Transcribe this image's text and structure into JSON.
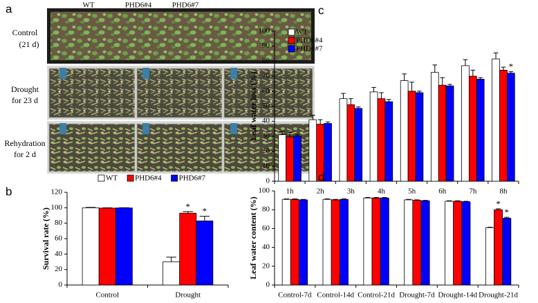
{
  "photo_panel": {
    "panel": "a",
    "columns": [
      "WT",
      "PHD6#4",
      "PHD6#7"
    ],
    "rows": [
      [
        "Control",
        "(21 d)"
      ],
      [
        "Drought",
        "for 23 d"
      ],
      [
        "Rehydration",
        "for 2 d"
      ]
    ]
  },
  "chart_data": [
    {
      "type": "bar",
      "panel": "b",
      "y_label": "Survival rate  (%)",
      "categories": [
        "Control",
        "Drought"
      ],
      "ylim": [
        0,
        120
      ],
      "yticks": [
        0,
        20,
        40,
        60,
        80,
        100,
        120
      ],
      "legend": "top",
      "series": [
        {
          "name": "WT",
          "color": "#ffffff",
          "values": [
            100,
            30
          ],
          "errors": [
            0.5,
            6
          ],
          "annotations": [
            null,
            null
          ]
        },
        {
          "name": "PHD6#4",
          "color": "#ff0000",
          "values": [
            99.5,
            93
          ],
          "errors": [
            0.5,
            2
          ],
          "annotations": [
            null,
            "*"
          ]
        },
        {
          "name": "PHD6#7",
          "color": "#0000ff",
          "values": [
            99.8,
            83
          ],
          "errors": [
            0.3,
            6
          ],
          "annotations": [
            null,
            "*"
          ]
        }
      ]
    },
    {
      "type": "bar",
      "panel": "c",
      "y_label": "Leaf water loss (%)",
      "categories": [
        "1h",
        "2h",
        "3h",
        "4h",
        "5h",
        "6h",
        "7h",
        "8h"
      ],
      "ylim": [
        0,
        100
      ],
      "yticks": [
        0,
        10,
        20,
        30,
        40,
        50,
        60,
        70,
        80,
        90,
        100
      ],
      "legend": "top-left",
      "series": [
        {
          "name": "WT",
          "color": "#ffffff",
          "values": [
            31,
            41,
            55,
            59.5,
            67,
            72.5,
            77,
            81.5
          ],
          "errors": [
            2,
            3,
            3.5,
            3,
            4.5,
            5,
            4,
            4
          ],
          "annotations": [
            null,
            null,
            null,
            null,
            null,
            null,
            null,
            null
          ]
        },
        {
          "name": "PHD6#4",
          "color": "#ff0000",
          "values": [
            29.5,
            38,
            51,
            55,
            60,
            64,
            70,
            74
          ],
          "errors": [
            3,
            3,
            4,
            4,
            6,
            5,
            4,
            2
          ],
          "annotations": [
            null,
            null,
            null,
            null,
            null,
            null,
            null,
            null
          ]
        },
        {
          "name": "PHD6#7",
          "color": "#0000ff",
          "values": [
            30,
            38.5,
            48.5,
            53,
            59,
            63.5,
            68,
            72
          ],
          "errors": [
            1,
            1,
            1,
            1.5,
            1,
            1,
            1,
            1
          ],
          "annotations": [
            null,
            null,
            null,
            null,
            null,
            null,
            null,
            "*"
          ]
        }
      ]
    },
    {
      "type": "bar",
      "panel": "d",
      "y_label": "Leaf water content (%)",
      "categories": [
        "Control-7d",
        "Control-14d",
        "Control-21d",
        "Drought-7d",
        "Drought-14d",
        "Drought-21d"
      ],
      "ylim": [
        0,
        100
      ],
      "yticks": [
        0,
        20,
        40,
        60,
        80,
        100
      ],
      "series": [
        {
          "color": "#ffffff",
          "values": [
            91,
            91,
            92.5,
            90.5,
            89,
            61
          ],
          "errors": [
            0.5,
            0.5,
            0.5,
            0.5,
            0.5,
            0.5
          ],
          "annotations": [
            null,
            null,
            null,
            null,
            null,
            null
          ]
        },
        {
          "color": "#ff0000",
          "values": [
            91,
            90.5,
            92.5,
            90,
            89,
            80
          ],
          "errors": [
            0.5,
            0.5,
            0.5,
            0.5,
            0.5,
            1
          ],
          "annotations": [
            null,
            null,
            null,
            null,
            null,
            "*"
          ]
        },
        {
          "color": "#0000ff",
          "values": [
            90.5,
            91,
            92.5,
            89.5,
            88.5,
            71
          ],
          "errors": [
            0.5,
            0.5,
            0.5,
            0.5,
            0.5,
            1
          ],
          "annotations": [
            null,
            null,
            null,
            null,
            null,
            "*"
          ]
        }
      ]
    }
  ]
}
